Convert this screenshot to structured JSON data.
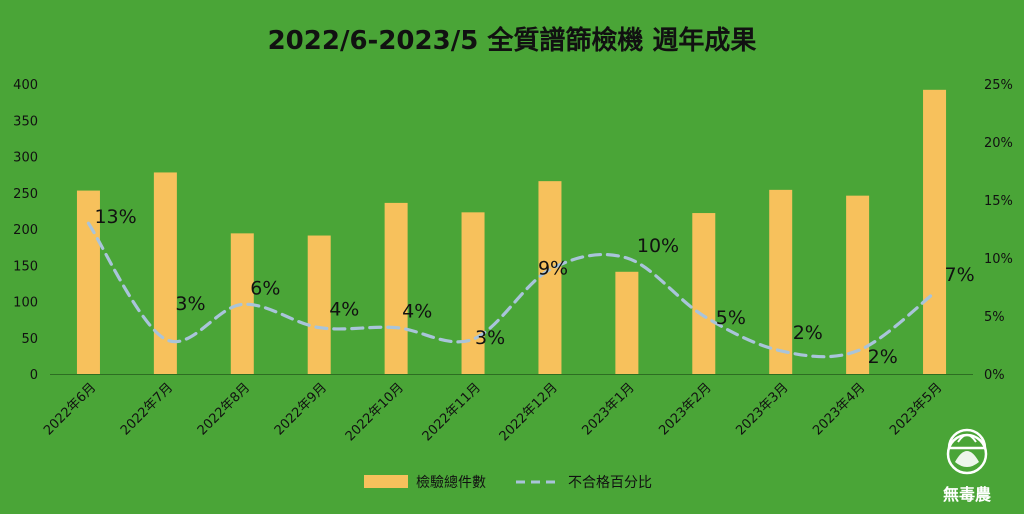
{
  "chart_data": {
    "type": "bar",
    "title": "2022/6-2023/5 全質譜篩檢機 週年成果",
    "categories": [
      "2022年6月",
      "2022年7月",
      "2022年8月",
      "2022年9月",
      "2022年10月",
      "2022年11月",
      "2022年12月",
      "2023年1月",
      "2023年2月",
      "2023年3月",
      "2023年4月",
      "2023年5月"
    ],
    "series": [
      {
        "name": "檢驗總件數",
        "kind": "bar",
        "axis": "left",
        "color": "#f7c15c",
        "values": [
          253,
          278,
          194,
          191,
          236,
          223,
          266,
          141,
          222,
          254,
          246,
          392
        ]
      },
      {
        "name": "不合格百分比",
        "kind": "line",
        "axis": "right",
        "color": "#a9c4da",
        "style": "dashed",
        "values": [
          13,
          3,
          6,
          4,
          4,
          3,
          9,
          10,
          5,
          2,
          2,
          7
        ],
        "labels": [
          "13%",
          "3%",
          "6%",
          "4%",
          "4%",
          "3%",
          "9%",
          "10%",
          "5%",
          "2%",
          "2%",
          "7%"
        ]
      }
    ],
    "y_left": {
      "ticks": [
        "0",
        "50",
        "100",
        "150",
        "200",
        "250",
        "300",
        "350",
        "400"
      ],
      "range": [
        0,
        400
      ]
    },
    "y_right": {
      "ticks": [
        "0%",
        "5%",
        "10%",
        "15%",
        "20%",
        "25%"
      ],
      "range": [
        0,
        25
      ]
    },
    "grid": false,
    "legend": "bottom"
  },
  "colors": {
    "background": "#4aa537",
    "bar": "#f7c15c",
    "line": "#a9c4da",
    "text": "#111111"
  },
  "logo": {
    "text": "無毒農",
    "icon": "lettuce-logo-icon"
  }
}
